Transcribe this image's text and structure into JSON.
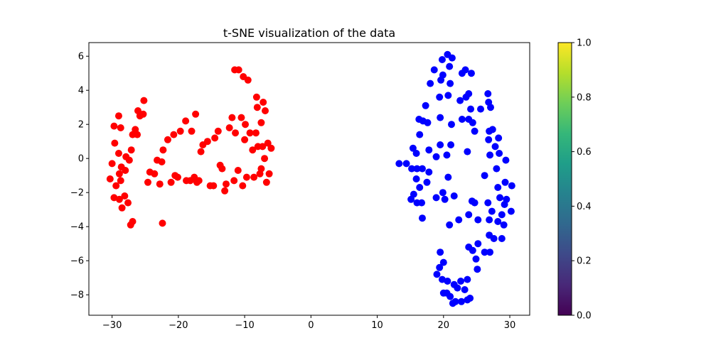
{
  "chart_data": {
    "type": "scatter",
    "title": "t-SNE visualization of the data",
    "xlabel": "",
    "ylabel": "",
    "xlim": [
      -33.5,
      33
    ],
    "ylim": [
      -9.2,
      6.8
    ],
    "xticks": [
      -30,
      -20,
      -10,
      0,
      10,
      20,
      30
    ],
    "yticks": [
      -8,
      -6,
      -4,
      -2,
      0,
      2,
      4,
      6
    ],
    "grid": false,
    "colorbar": {
      "colormap": "viridis",
      "range": [
        0.0,
        1.0
      ],
      "ticks": [
        "0.0",
        "0.2",
        "0.4",
        "0.6",
        "0.8",
        "1.0"
      ],
      "colors": [
        "#440154",
        "#482878",
        "#3e4989",
        "#31688e",
        "#26828e",
        "#1f9e89",
        "#35b779",
        "#6ece58",
        "#b5de2b",
        "#fde725"
      ]
    },
    "series": [
      {
        "color": "#ff0000",
        "points": [
          [
            -30.3,
            -1.2
          ],
          [
            -30.0,
            -0.3
          ],
          [
            -29.7,
            1.9
          ],
          [
            -29.6,
            0.9
          ],
          [
            -29.4,
            -1.6
          ],
          [
            -29.7,
            -2.3
          ],
          [
            -29.0,
            0.3
          ],
          [
            -28.9,
            -0.9
          ],
          [
            -29.0,
            2.5
          ],
          [
            -28.7,
            1.8
          ],
          [
            -28.6,
            -0.5
          ],
          [
            -28.7,
            -1.3
          ],
          [
            -28.9,
            -2.4
          ],
          [
            -28.5,
            -2.9
          ],
          [
            -28.1,
            -2.2
          ],
          [
            -28.0,
            -0.7
          ],
          [
            -27.9,
            0.1
          ],
          [
            -27.6,
            -2.6
          ],
          [
            -27.4,
            -0.1
          ],
          [
            -27.1,
            0.5
          ],
          [
            -26.9,
            1.4
          ],
          [
            -26.5,
            1.7
          ],
          [
            -26.2,
            1.4
          ],
          [
            -26.1,
            2.8
          ],
          [
            -25.8,
            2.5
          ],
          [
            -25.3,
            2.6
          ],
          [
            -25.2,
            3.4
          ],
          [
            -27.2,
            -3.9
          ],
          [
            -26.9,
            -3.7
          ],
          [
            -24.6,
            -1.4
          ],
          [
            -24.3,
            -0.8
          ],
          [
            -23.6,
            -0.9
          ],
          [
            -23.2,
            -0.1
          ],
          [
            -22.8,
            -1.5
          ],
          [
            -22.5,
            -0.2
          ],
          [
            -22.3,
            0.5
          ],
          [
            -21.6,
            1.1
          ],
          [
            -21.1,
            -1.4
          ],
          [
            -20.7,
            1.4
          ],
          [
            -20.5,
            -1.0
          ],
          [
            -20.1,
            -1.1
          ],
          [
            -19.7,
            1.6
          ],
          [
            -18.9,
            2.2
          ],
          [
            -18.8,
            -1.3
          ],
          [
            -18.2,
            -1.3
          ],
          [
            -18.0,
            1.6
          ],
          [
            -17.6,
            -1.1
          ],
          [
            -17.4,
            2.6
          ],
          [
            -17.2,
            -1.4
          ],
          [
            -16.9,
            -1.3
          ],
          [
            -16.6,
            0.4
          ],
          [
            -16.3,
            0.8
          ],
          [
            -15.6,
            1.0
          ],
          [
            -15.2,
            -1.6
          ],
          [
            -14.7,
            -1.6
          ],
          [
            -14.5,
            1.2
          ],
          [
            -14.0,
            1.6
          ],
          [
            -13.7,
            -0.4
          ],
          [
            -13.4,
            -0.6
          ],
          [
            -13.0,
            -1.9
          ],
          [
            -12.8,
            -1.5
          ],
          [
            -12.3,
            1.8
          ],
          [
            -11.9,
            2.4
          ],
          [
            -11.6,
            -1.3
          ],
          [
            -11.4,
            1.5
          ],
          [
            -11.0,
            -0.7
          ],
          [
            -10.5,
            2.4
          ],
          [
            -10.3,
            -1.6
          ],
          [
            -10.0,
            1.1
          ],
          [
            -9.9,
            2.0
          ],
          [
            -9.7,
            -1.1
          ],
          [
            -9.2,
            1.5
          ],
          [
            -8.8,
            0.5
          ],
          [
            -8.6,
            -1.1
          ],
          [
            -8.3,
            1.5
          ],
          [
            -8.0,
            0.7
          ],
          [
            -7.7,
            -0.9
          ],
          [
            -7.5,
            -0.6
          ],
          [
            -7.3,
            0.7
          ],
          [
            -7.0,
            0.0
          ],
          [
            -6.7,
            -1.4
          ],
          [
            -6.5,
            0.9
          ],
          [
            -6.3,
            -0.9
          ],
          [
            -6.0,
            0.6
          ],
          [
            -7.5,
            2.1
          ],
          [
            -8.1,
            3.0
          ],
          [
            -8.2,
            3.6
          ],
          [
            -7.2,
            3.3
          ],
          [
            -6.9,
            2.8
          ],
          [
            -10.9,
            5.2
          ],
          [
            -11.5,
            5.2
          ],
          [
            -10.2,
            4.8
          ],
          [
            -9.5,
            4.6
          ],
          [
            -22.4,
            -3.8
          ]
        ]
      },
      {
        "color": "#0000ff",
        "points": [
          [
            20.6,
            6.1
          ],
          [
            21.3,
            5.9
          ],
          [
            19.8,
            5.8
          ],
          [
            18.6,
            5.2
          ],
          [
            20.9,
            5.4
          ],
          [
            19.9,
            4.9
          ],
          [
            23.3,
            5.2
          ],
          [
            24.2,
            5.0
          ],
          [
            22.8,
            5.0
          ],
          [
            19.6,
            4.6
          ],
          [
            21.0,
            4.4
          ],
          [
            18.0,
            4.4
          ],
          [
            20.7,
            3.7
          ],
          [
            19.4,
            3.6
          ],
          [
            23.4,
            3.6
          ],
          [
            22.5,
            3.4
          ],
          [
            23.8,
            3.8
          ],
          [
            17.3,
            3.1
          ],
          [
            24.1,
            2.9
          ],
          [
            25.6,
            2.9
          ],
          [
            26.7,
            3.8
          ],
          [
            26.8,
            3.3
          ],
          [
            27.1,
            3.0
          ],
          [
            16.3,
            2.3
          ],
          [
            16.9,
            2.2
          ],
          [
            17.6,
            2.1
          ],
          [
            19.5,
            2.4
          ],
          [
            21.2,
            2.0
          ],
          [
            22.8,
            2.3
          ],
          [
            23.8,
            2.3
          ],
          [
            24.4,
            2.1
          ],
          [
            16.4,
            1.4
          ],
          [
            24.7,
            1.6
          ],
          [
            26.9,
            1.6
          ],
          [
            27.4,
            1.7
          ],
          [
            28.3,
            1.2
          ],
          [
            26.8,
            1.1
          ],
          [
            17.8,
            0.5
          ],
          [
            15.4,
            0.6
          ],
          [
            15.9,
            0.3
          ],
          [
            19.5,
            0.8
          ],
          [
            21.1,
            0.8
          ],
          [
            20.5,
            0.2
          ],
          [
            18.9,
            0.1
          ],
          [
            23.6,
            0.4
          ],
          [
            27.0,
            0.2
          ],
          [
            27.8,
            0.7
          ],
          [
            28.4,
            0.3
          ],
          [
            29.4,
            -0.1
          ],
          [
            13.3,
            -0.3
          ],
          [
            14.4,
            -0.3
          ],
          [
            15.2,
            -0.6
          ],
          [
            16.0,
            -0.6
          ],
          [
            16.8,
            -0.6
          ],
          [
            17.8,
            -0.8
          ],
          [
            28.0,
            -0.6
          ],
          [
            26.2,
            -1.0
          ],
          [
            15.9,
            -1.2
          ],
          [
            17.5,
            -1.4
          ],
          [
            20.7,
            -1.1
          ],
          [
            28.2,
            -1.7
          ],
          [
            29.3,
            -1.4
          ],
          [
            30.3,
            -1.6
          ],
          [
            16.4,
            -1.7
          ],
          [
            15.5,
            -2.1
          ],
          [
            15.1,
            -2.4
          ],
          [
            19.9,
            -2.0
          ],
          [
            18.9,
            -2.3
          ],
          [
            20.2,
            -2.4
          ],
          [
            21.6,
            -2.2
          ],
          [
            24.3,
            -2.5
          ],
          [
            24.7,
            -2.6
          ],
          [
            26.7,
            -2.6
          ],
          [
            28.5,
            -2.3
          ],
          [
            29.5,
            -2.4
          ],
          [
            16.0,
            -2.6
          ],
          [
            16.7,
            -2.6
          ],
          [
            29.2,
            -2.7
          ],
          [
            27.3,
            -3.1
          ],
          [
            28.8,
            -3.3
          ],
          [
            30.2,
            -3.1
          ],
          [
            16.8,
            -3.5
          ],
          [
            23.8,
            -3.3
          ],
          [
            22.3,
            -3.6
          ],
          [
            25.2,
            -3.6
          ],
          [
            26.9,
            -3.6
          ],
          [
            28.2,
            -3.7
          ],
          [
            29.1,
            -3.9
          ],
          [
            20.9,
            -3.9
          ],
          [
            26.9,
            -4.5
          ],
          [
            27.6,
            -4.7
          ],
          [
            28.8,
            -4.7
          ],
          [
            23.8,
            -5.2
          ],
          [
            24.4,
            -5.4
          ],
          [
            25.2,
            -5.0
          ],
          [
            26.2,
            -5.5
          ],
          [
            27.0,
            -5.5
          ],
          [
            19.5,
            -5.5
          ],
          [
            20.0,
            -6.1
          ],
          [
            24.9,
            -5.9
          ],
          [
            25.1,
            -6.5
          ],
          [
            19.4,
            -6.4
          ],
          [
            19.0,
            -6.8
          ],
          [
            19.8,
            -7.1
          ],
          [
            20.6,
            -7.2
          ],
          [
            21.6,
            -7.4
          ],
          [
            22.1,
            -7.6
          ],
          [
            22.6,
            -7.2
          ],
          [
            23.2,
            -7.7
          ],
          [
            23.6,
            -7.1
          ],
          [
            20.0,
            -7.9
          ],
          [
            20.5,
            -7.9
          ],
          [
            21.0,
            -8.1
          ],
          [
            21.8,
            -8.4
          ],
          [
            22.7,
            -8.4
          ],
          [
            23.6,
            -8.3
          ],
          [
            24.0,
            -8.2
          ],
          [
            21.4,
            -8.5
          ]
        ]
      }
    ]
  }
}
